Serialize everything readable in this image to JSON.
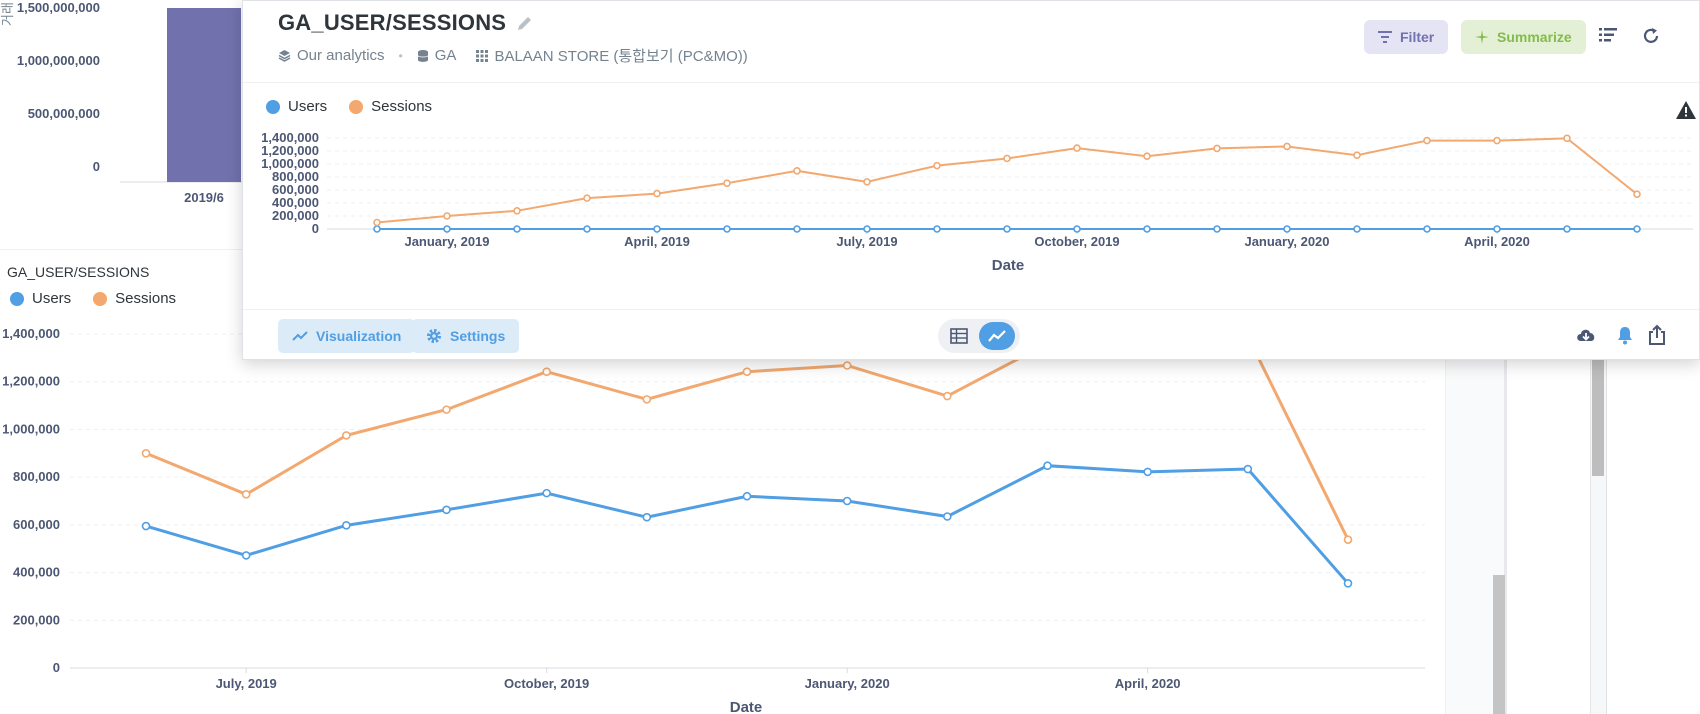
{
  "background": {
    "top_chart": {
      "axis_label_fragment": "거래",
      "y_ticks": [
        "1,500,000,000",
        "1,000,000,000",
        "500,000,000",
        "0"
      ],
      "x_tick": "2019/6",
      "bar_value": 1500000000,
      "bar_color": "#7172ad"
    },
    "card": {
      "title": "GA_USER/SESSIONS",
      "legend": [
        {
          "name": "Users",
          "color": "#509ee3"
        },
        {
          "name": "Sessions",
          "color": "#f2a86f"
        }
      ]
    }
  },
  "chart_data": [
    {
      "type": "line",
      "title": "GA_USER/SESSIONS",
      "xlabel": "Date",
      "ylabel": "",
      "x_tick_labels": [
        "July, 2019",
        "October, 2019",
        "January, 2020",
        "April, 2020"
      ],
      "y_tick_labels": [
        "0",
        "200,000",
        "400,000",
        "600,000",
        "800,000",
        "1,000,000",
        "1,200,000",
        "1,400,000"
      ],
      "ylim": [
        0,
        1400000
      ],
      "x": [
        "2019-06",
        "2019-07",
        "2019-08",
        "2019-09",
        "2019-10",
        "2019-11",
        "2019-12",
        "2020-01",
        "2020-02",
        "2020-03",
        "2020-04",
        "2020-05",
        "2020-06"
      ],
      "series": [
        {
          "name": "Users",
          "color": "#509ee3",
          "values": [
            595000,
            472000,
            598000,
            663000,
            733000,
            632000,
            720000,
            700000,
            635000,
            848000,
            822000,
            834000,
            355000
          ]
        },
        {
          "name": "Sessions",
          "color": "#f2a86f",
          "values": [
            900000,
            728000,
            975000,
            1083000,
            1242000,
            1126000,
            1242000,
            1268000,
            1140000,
            1360000,
            1358000,
            1390000,
            538000
          ]
        }
      ],
      "grid": true,
      "legend": "top-left"
    },
    {
      "type": "line",
      "title": "GA_USER/SESSIONS",
      "xlabel": "Date",
      "ylabel": "",
      "x_tick_labels": [
        "January, 2019",
        "April, 2019",
        "July, 2019",
        "October, 2019",
        "January, 2020",
        "April, 2020"
      ],
      "y_tick_labels": [
        "0",
        "200,000",
        "400,000",
        "600,000",
        "800,000",
        "1,000,000",
        "1,200,000",
        "1,400,000"
      ],
      "ylim": [
        0,
        1400000
      ],
      "x": [
        "2018-12",
        "2019-01",
        "2019-02",
        "2019-03",
        "2019-04",
        "2019-05",
        "2019-06",
        "2019-07",
        "2019-08",
        "2019-09",
        "2019-10",
        "2019-11",
        "2019-12",
        "2020-01",
        "2020-02",
        "2020-03",
        "2020-04",
        "2020-05",
        "2020-06"
      ],
      "series": [
        {
          "name": "Users",
          "color": "#509ee3",
          "values": [
            0,
            0,
            0,
            0,
            0,
            0,
            0,
            0,
            0,
            0,
            0,
            0,
            0,
            0,
            0,
            0,
            0,
            0,
            0
          ]
        },
        {
          "name": "Sessions",
          "color": "#f2a86f",
          "values": [
            100000,
            200000,
            280000,
            475000,
            545000,
            705000,
            895000,
            725000,
            975000,
            1085000,
            1245000,
            1120000,
            1240000,
            1270000,
            1135000,
            1360000,
            1360000,
            1395000,
            535000
          ]
        }
      ],
      "grid": true,
      "legend": "top-left"
    }
  ],
  "modal": {
    "title": "GA_USER/SESSIONS",
    "breadcrumb": {
      "collection": "Our analytics",
      "database": "GA",
      "table": "BALAAN STORE (통합보기 (PC&MO))"
    },
    "filter_label": "Filter",
    "summarize_label": "Summarize",
    "legend": [
      {
        "name": "Users",
        "color": "#509ee3"
      },
      {
        "name": "Sessions",
        "color": "#f2a86f"
      }
    ],
    "visualization_label": "Visualization",
    "settings_label": "Settings"
  }
}
